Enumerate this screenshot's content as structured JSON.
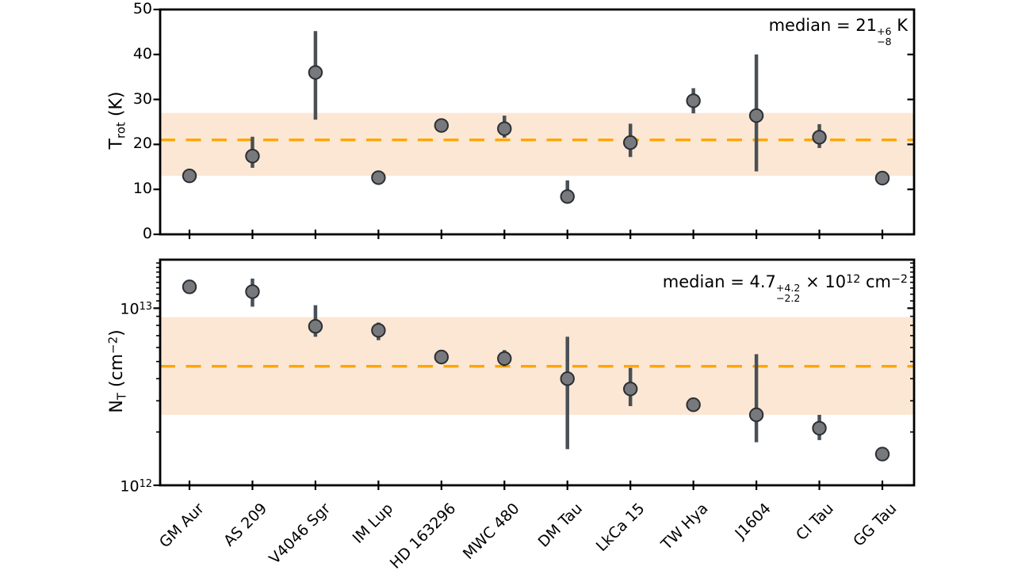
{
  "figure": {
    "colors": {
      "background": "#ffffff",
      "frame": "#000000",
      "median_line": "#ffa500",
      "median_band": "#fbe7d4",
      "marker_fill": "#77797c",
      "marker_edge": "#2b2f33",
      "error_bar": "#495056",
      "text": "#000000"
    }
  },
  "chart_data": [
    {
      "type": "scatter",
      "name": "rotational-temperature",
      "yscale": "linear",
      "ylim": [
        0,
        50
      ],
      "ylabel_text": "T_rot (K)",
      "ylabel_segments": [
        {
          "text": "T"
        },
        {
          "text": "rot",
          "style": "sub"
        },
        {
          "text": " (K)"
        }
      ],
      "yticks": [
        {
          "value": 0,
          "label": "0"
        },
        {
          "value": 10,
          "label": "10"
        },
        {
          "value": 20,
          "label": "20"
        },
        {
          "value": 30,
          "label": "30"
        },
        {
          "value": 40,
          "label": "40"
        },
        {
          "value": 50,
          "label": "50"
        }
      ],
      "categories": [
        "GM Aur",
        "AS 209",
        "V4046 Sgr",
        "IM Lup",
        "HD 163296",
        "MWC 480",
        "DM Tau",
        "LkCa 15",
        "TW Hya",
        "J1604",
        "CI Tau",
        "GG Tau"
      ],
      "values": [
        13.0,
        17.4,
        36.0,
        12.6,
        24.2,
        23.5,
        8.4,
        20.4,
        29.7,
        26.4,
        21.6,
        12.5
      ],
      "err_lo_abs": [
        12.6,
        14.8,
        25.5,
        12.1,
        23.5,
        21.5,
        7.8,
        17.2,
        26.9,
        14.0,
        19.2,
        12.1
      ],
      "err_hi_abs": [
        13.5,
        21.7,
        45.2,
        13.2,
        25.0,
        26.4,
        12.0,
        24.6,
        32.5,
        40.0,
        24.5,
        13.0
      ],
      "median": 21,
      "median_plus": 6,
      "median_minus": 8,
      "band": [
        13,
        27
      ],
      "annotation_text": "median = 21 +6/-8 K",
      "annotation_parts": [
        {
          "text": "median = 21",
          "style": "normal"
        },
        {
          "sup": "+6",
          "sub": "−8",
          "style": "stack"
        },
        {
          "text": " K",
          "style": "normal"
        }
      ]
    },
    {
      "type": "scatter",
      "name": "column-density",
      "yscale": "log",
      "ylim": [
        1000000000000.0,
        18800000000000.0
      ],
      "ylabel_text": "N_T (cm^-2)",
      "ylabel_segments": [
        {
          "text": "N"
        },
        {
          "text": "T",
          "style": "sub"
        },
        {
          "text": " (cm"
        },
        {
          "text": "−2",
          "style": "sup"
        },
        {
          "text": ")"
        }
      ],
      "yticks": [
        {
          "value": 1000000000000.0,
          "base": "10",
          "exp": "12"
        },
        {
          "value": 10000000000000.0,
          "base": "10",
          "exp": "13"
        }
      ],
      "categories": [
        "GM Aur",
        "AS 209",
        "V4046 Sgr",
        "IM Lup",
        "HD 163296",
        "MWC 480",
        "DM Tau",
        "LkCa 15",
        "TW Hya",
        "J1604",
        "CI Tau",
        "GG Tau"
      ],
      "values": [
        13200000000000.0,
        12400000000000.0,
        7900000000000.0,
        7500000000000.0,
        5300000000000.0,
        5200000000000.0,
        4000000000000.0,
        3500000000000.0,
        2850000000000.0,
        2500000000000.0,
        2100000000000.0,
        1500000000000.0
      ],
      "err_lo_abs": [
        12300000000000.0,
        10200000000000.0,
        6900000000000.0,
        6600000000000.0,
        5000000000000.0,
        4700000000000.0,
        1600000000000.0,
        2800000000000.0,
        2700000000000.0,
        1750000000000.0,
        1800000000000.0,
        1400000000000.0
      ],
      "err_hi_abs": [
        14200000000000.0,
        14700000000000.0,
        10400000000000.0,
        8300000000000.0,
        5700000000000.0,
        5800000000000.0,
        6900000000000.0,
        4600000000000.0,
        3000000000000.0,
        5500000000000.0,
        2500000000000.0,
        1600000000000.0
      ],
      "median": 4700000000000.0,
      "median_plus": 4200000000000.0,
      "median_minus": 2200000000000.0,
      "band": [
        2500000000000.0,
        8900000000000.0
      ],
      "annotation_text": "median = 4.7 +4.2/-2.2 x 10^12 cm^-2",
      "annotation_parts": [
        {
          "text": "median = 4.7",
          "style": "normal"
        },
        {
          "sup": "+4.2",
          "sub": "−2.2",
          "style": "stack"
        },
        {
          "text": " × 10",
          "style": "normal"
        },
        {
          "text": "12",
          "style": "sup"
        },
        {
          "text": " cm",
          "style": "normal"
        },
        {
          "text": "−2",
          "style": "sup"
        }
      ]
    }
  ]
}
